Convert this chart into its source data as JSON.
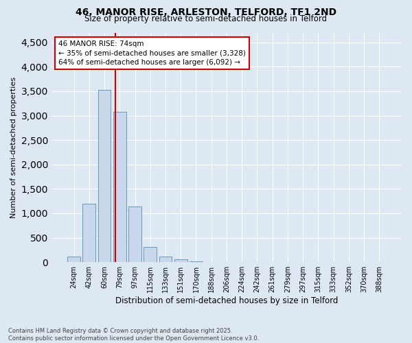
{
  "title_line1": "46, MANOR RISE, ARLESTON, TELFORD, TF1 2ND",
  "title_line2": "Size of property relative to semi-detached houses in Telford",
  "xlabel": "Distribution of semi-detached houses by size in Telford",
  "ylabel": "Number of semi-detached properties",
  "categories": [
    "24sqm",
    "42sqm",
    "60sqm",
    "79sqm",
    "97sqm",
    "115sqm",
    "133sqm",
    "151sqm",
    "170sqm",
    "188sqm",
    "206sqm",
    "224sqm",
    "242sqm",
    "261sqm",
    "279sqm",
    "297sqm",
    "315sqm",
    "333sqm",
    "352sqm",
    "370sqm",
    "388sqm"
  ],
  "values": [
    120,
    1190,
    3530,
    3080,
    1140,
    310,
    110,
    55,
    20,
    3,
    0,
    0,
    0,
    0,
    0,
    0,
    0,
    0,
    0,
    0,
    0
  ],
  "bar_color": "#c8d8ea",
  "bar_edge_color": "#6699bb",
  "annotation_label": "46 MANOR RISE: 74sqm",
  "annotation_smaller": "← 35% of semi-detached houses are smaller (3,328)",
  "annotation_larger": "64% of semi-detached houses are larger (6,092) →",
  "vline_color": "#cc0000",
  "vline_x": 2.74,
  "ylim": [
    0,
    4700
  ],
  "yticks": [
    0,
    500,
    1000,
    1500,
    2000,
    2500,
    3000,
    3500,
    4000,
    4500
  ],
  "footer1": "Contains HM Land Registry data © Crown copyright and database right 2025.",
  "footer2": "Contains public sector information licensed under the Open Government Licence v3.0.",
  "background_color": "#dde8f2",
  "annotation_text_fontsize": 7.5
}
